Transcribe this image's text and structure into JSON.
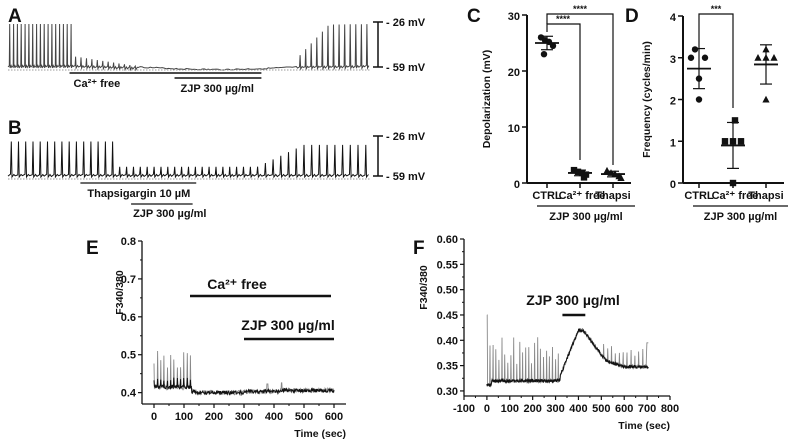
{
  "figure": {
    "panels": [
      "A",
      "B",
      "C",
      "D",
      "E",
      "F"
    ]
  },
  "chart_data": [
    {
      "id": "A",
      "type": "line",
      "title": "",
      "description": "Membrane potential trace; spikes suppressed in Ca2+ free and ZJP, recovering after washout",
      "scale_labels": [
        "- 26 mV",
        "- 59 mV"
      ],
      "annotations": [
        {
          "text": "Ca²⁺ free",
          "bar_fraction": [
            0.17,
            0.7
          ]
        },
        {
          "text": "ZJP 300 µg/ml",
          "bar_fraction": [
            0.46,
            0.7
          ]
        }
      ],
      "segments": [
        {
          "phase": "control",
          "spikes": 17,
          "amplitude_mV": 33
        },
        {
          "phase": "Ca2+ free decay",
          "spikes": 12,
          "amplitude_mV": 8
        },
        {
          "phase": "suppressed",
          "spikes": 0,
          "amplitude_mV": 1
        },
        {
          "phase": "recovery",
          "spikes": 13,
          "amplitude_mV": 33
        }
      ]
    },
    {
      "id": "B",
      "type": "line",
      "title": "",
      "description": "Membrane potential trace; Thapsigargin reduces spike amplitude, ZJP added, recovery after washout",
      "scale_labels": [
        "- 26 mV",
        "- 59 mV"
      ],
      "annotations": [
        {
          "text": "Thapsigargin 10 µM",
          "bar_fraction": [
            0.2,
            0.52
          ]
        },
        {
          "text": "ZJP 300 µg/ml",
          "bar_fraction": [
            0.34,
            0.51
          ]
        }
      ],
      "segments": [
        {
          "phase": "control",
          "spikes": 15,
          "amplitude_mV": 30
        },
        {
          "phase": "thapsigargin",
          "spikes": 20,
          "amplitude_mV": 8
        },
        {
          "phase": "recovery",
          "spikes": 15,
          "amplitude_mV": 27
        }
      ]
    },
    {
      "id": "C",
      "type": "scatter",
      "ylabel": "Depolarization (mV)",
      "xlabel": "ZJP 300 µg/ml",
      "categories": [
        "CTRL",
        "Ca²⁺ free",
        "Thapsi"
      ],
      "ylim": [
        0,
        30
      ],
      "yticks": [
        "0",
        "10",
        "20",
        "30"
      ],
      "series": [
        {
          "name": "CTRL",
          "marker": "circle",
          "values": [
            26.0,
            25.5,
            25.2,
            24.5,
            23.0
          ],
          "mean": 25.0,
          "sd": 1.2
        },
        {
          "name": "Ca²⁺ free",
          "marker": "square",
          "values": [
            2.3,
            2.0,
            1.8,
            1.5,
            1.0
          ],
          "mean": 1.8,
          "sd": 0.5
        },
        {
          "name": "Thapsi",
          "marker": "triangle",
          "values": [
            2.2,
            1.8,
            1.6,
            1.2,
            0.9
          ],
          "mean": 1.6,
          "sd": 0.5
        }
      ],
      "significance": [
        {
          "pair": [
            "CTRL",
            "Ca²⁺ free"
          ],
          "label": "****"
        },
        {
          "pair": [
            "CTRL",
            "Thapsi"
          ],
          "label": "****"
        }
      ]
    },
    {
      "id": "D",
      "type": "scatter",
      "ylabel": "Frequency (cycles/min)",
      "xlabel": "ZJP 300 µg/ml",
      "categories": [
        "CTRL",
        "Ca²⁺ free",
        "Thapsi"
      ],
      "ylim": [
        0,
        4
      ],
      "yticks": [
        "0",
        "1",
        "2",
        "3",
        "4"
      ],
      "series": [
        {
          "name": "CTRL",
          "marker": "circle",
          "values": [
            3.2,
            3.0,
            3.0,
            2.5,
            2.0
          ],
          "mean": 2.74,
          "sd": 0.48
        },
        {
          "name": "Ca²⁺ free",
          "marker": "square",
          "values": [
            1.5,
            1.0,
            1.0,
            1.0,
            0.0
          ],
          "mean": 0.9,
          "sd": 0.55
        },
        {
          "name": "Thapsi",
          "marker": "triangle",
          "values": [
            3.2,
            3.0,
            3.0,
            3.0,
            2.0
          ],
          "mean": 2.84,
          "sd": 0.47
        }
      ],
      "significance": [
        {
          "pair": [
            "CTRL",
            "Ca²⁺ free"
          ],
          "label": "***"
        }
      ]
    },
    {
      "id": "E",
      "type": "line",
      "ylabel": "F340/380",
      "xlabel": "Time (sec)",
      "xlim": [
        -40,
        640
      ],
      "ylim": [
        0.37,
        0.8
      ],
      "xticks": [
        "0",
        "100",
        "200",
        "300",
        "400",
        "500",
        "600"
      ],
      "yticks": [
        "0.4",
        "0.5",
        "0.6",
        "0.7",
        "0.8"
      ],
      "annotations": [
        {
          "text": "Ca²⁺ free",
          "x_range": [
            120,
            590
          ]
        },
        {
          "text": "ZJP 300 µg/ml",
          "x_range": [
            300,
            600
          ]
        }
      ],
      "series": [
        {
          "name": "trace",
          "baseline_control": 0.415,
          "spike_peak": 0.505,
          "spike_end_sec": 125,
          "baseline_after": 0.403
        }
      ]
    },
    {
      "id": "F",
      "type": "line",
      "ylabel": "F340/380",
      "xlabel": "Time (sec)",
      "xlim": [
        -100,
        800
      ],
      "ylim": [
        0.29,
        0.6
      ],
      "xticks": [
        "-100",
        "0",
        "100",
        "200",
        "300",
        "400",
        "500",
        "600",
        "700",
        "800"
      ],
      "yticks": [
        "0.30",
        "0.35",
        "0.40",
        "0.45",
        "0.50",
        "0.55",
        "0.60"
      ],
      "annotations": [
        {
          "text": "ZJP 300 µg/ml",
          "x_range": [
            330,
            430
          ]
        }
      ],
      "series": [
        {
          "name": "trace",
          "baseline_control": 0.32,
          "spike_peak": 0.45,
          "plateau_peak": 0.42,
          "plateau_time_sec": 420,
          "baseline_after": 0.35
        }
      ]
    }
  ]
}
